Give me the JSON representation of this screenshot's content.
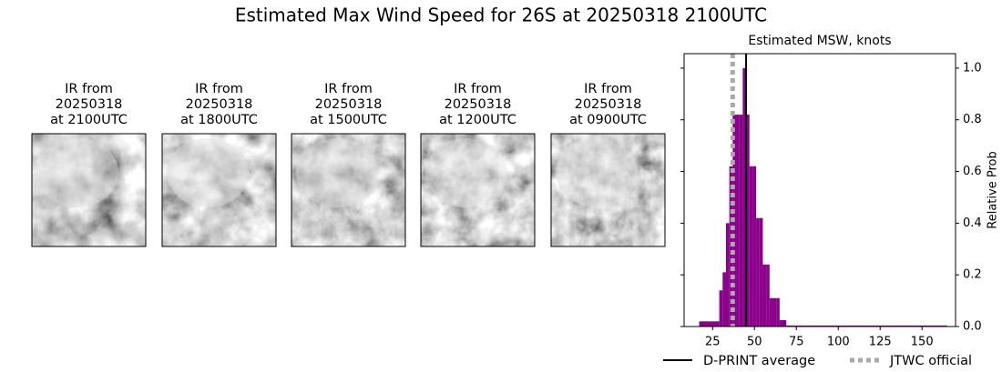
{
  "title": "Estimated Max Wind Speed for 26S at 20250318 2100UTC",
  "panels": [
    {
      "lines": [
        "IR from",
        "20250318",
        "at 2100UTC"
      ]
    },
    {
      "lines": [
        "IR from",
        "20250318",
        "at 1800UTC"
      ]
    },
    {
      "lines": [
        "IR from",
        "20250318",
        "at 1500UTC"
      ]
    },
    {
      "lines": [
        "IR from",
        "20250318",
        "at 1200UTC"
      ]
    },
    {
      "lines": [
        "IR from",
        "20250318",
        "at 0900UTC"
      ]
    }
  ],
  "chart_data": {
    "type": "histogram",
    "title": "Estimated MSW, knots",
    "ylabel": "Relative Prob",
    "bins": [
      17,
      29,
      31,
      33,
      35,
      37,
      39,
      41,
      43,
      45,
      47,
      49,
      51,
      53,
      55,
      57,
      59,
      61,
      63,
      65,
      69,
      165
    ],
    "values": [
      0.02,
      0.14,
      0.21,
      0.4,
      0.62,
      0.82,
      0.82,
      0.82,
      1.0,
      0.82,
      0.62,
      0.62,
      0.42,
      0.42,
      0.24,
      0.24,
      0.11,
      0.11,
      0.11,
      0.025,
      0.004
    ],
    "color": "#8b008b",
    "xlim": [
      8,
      170
    ],
    "ylim": [
      0,
      1.056
    ],
    "xticks": [
      25,
      50,
      75,
      100,
      125,
      150
    ],
    "yticks": [
      {
        "value": 0,
        "label": "0.0"
      },
      0.2,
      0.4,
      0.6,
      0.8,
      {
        "value": 1,
        "label": "1.0"
      }
    ],
    "reference_lines": [
      {
        "name": "D-PRINT average",
        "value": 45,
        "color": "#000000",
        "dashed": false
      },
      {
        "name": "JTWC official",
        "value": 37,
        "color": "#aaaaaa",
        "dashed": true
      }
    ]
  }
}
